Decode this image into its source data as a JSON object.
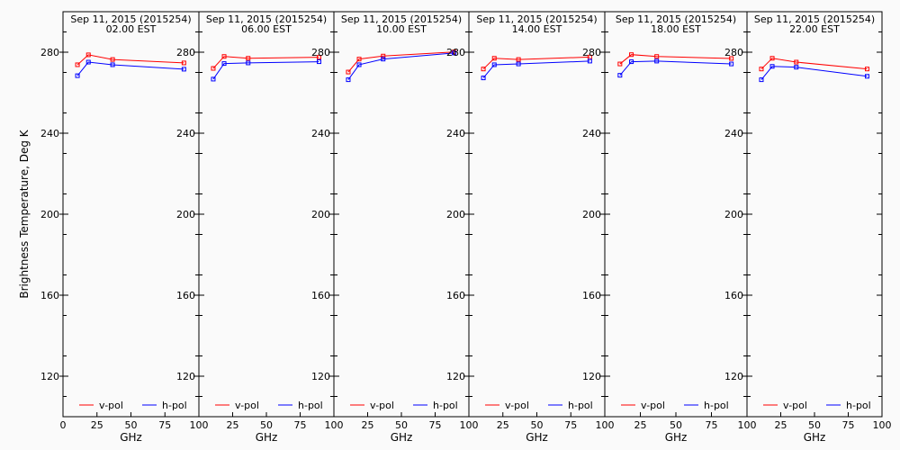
{
  "chart_data": {
    "type": "line",
    "ylabel": "Brightness Temperature, Deg K",
    "xlabel": "GHz",
    "xlim": [
      0,
      100
    ],
    "ylim": [
      100,
      300
    ],
    "x_ticks": [
      "0",
      "25",
      "50",
      "75",
      "100"
    ],
    "x_tick_values": [
      0,
      25,
      50,
      75,
      100
    ],
    "y_ticks": [
      "120",
      "160",
      "200",
      "240",
      "280"
    ],
    "y_tick_values": [
      120,
      160,
      200,
      240,
      280
    ],
    "legend_placement": "bottom",
    "frequencies_ghz": [
      10.65,
      18.7,
      36.5,
      89.0
    ],
    "series_colors": {
      "v-pol": "#ff0000",
      "h-pol": "#0000ff"
    },
    "panels": [
      {
        "title": "Sep 11, 2015 (2015254)",
        "subtitle": "02.00 EST",
        "series": [
          {
            "name": "v-pol",
            "values": [
              273.8,
              278.7,
              276.4,
              274.7
            ]
          },
          {
            "name": "h-pol",
            "values": [
              268.4,
              275.1,
              273.8,
              271.6
            ]
          }
        ]
      },
      {
        "title": "Sep 11, 2015 (2015254)",
        "subtitle": "06.00 EST",
        "series": [
          {
            "name": "v-pol",
            "values": [
              272.0,
              277.9,
              277.0,
              277.5
            ]
          },
          {
            "name": "h-pol",
            "values": [
              266.7,
              274.4,
              274.7,
              275.3
            ]
          }
        ]
      },
      {
        "title": "Sep 11, 2015 (2015254)",
        "subtitle": "10.00 EST",
        "series": [
          {
            "name": "v-pol",
            "values": [
              270.2,
              276.6,
              278.1,
              280.1
            ]
          },
          {
            "name": "h-pol",
            "values": [
              266.4,
              273.8,
              276.6,
              279.6
            ]
          }
        ]
      },
      {
        "title": "Sep 11, 2015 (2015254)",
        "subtitle": "14.00 EST",
        "series": [
          {
            "name": "v-pol",
            "values": [
              271.7,
              277.0,
              276.4,
              277.6
            ]
          },
          {
            "name": "h-pol",
            "values": [
              267.3,
              273.8,
              274.2,
              275.6
            ]
          }
        ]
      },
      {
        "title": "Sep 11, 2015 (2015254)",
        "subtitle": "18.00 EST",
        "series": [
          {
            "name": "v-pol",
            "values": [
              274.2,
              278.8,
              277.9,
              276.9
            ]
          },
          {
            "name": "h-pol",
            "values": [
              268.6,
              275.3,
              275.6,
              274.2
            ]
          }
        ]
      },
      {
        "title": "Sep 11, 2015 (2015254)",
        "subtitle": "22.00 EST",
        "series": [
          {
            "name": "v-pol",
            "values": [
              271.7,
              277.0,
              275.1,
              271.7
            ]
          },
          {
            "name": "h-pol",
            "values": [
              266.4,
              273.0,
              272.6,
              268.1
            ]
          }
        ]
      }
    ]
  }
}
